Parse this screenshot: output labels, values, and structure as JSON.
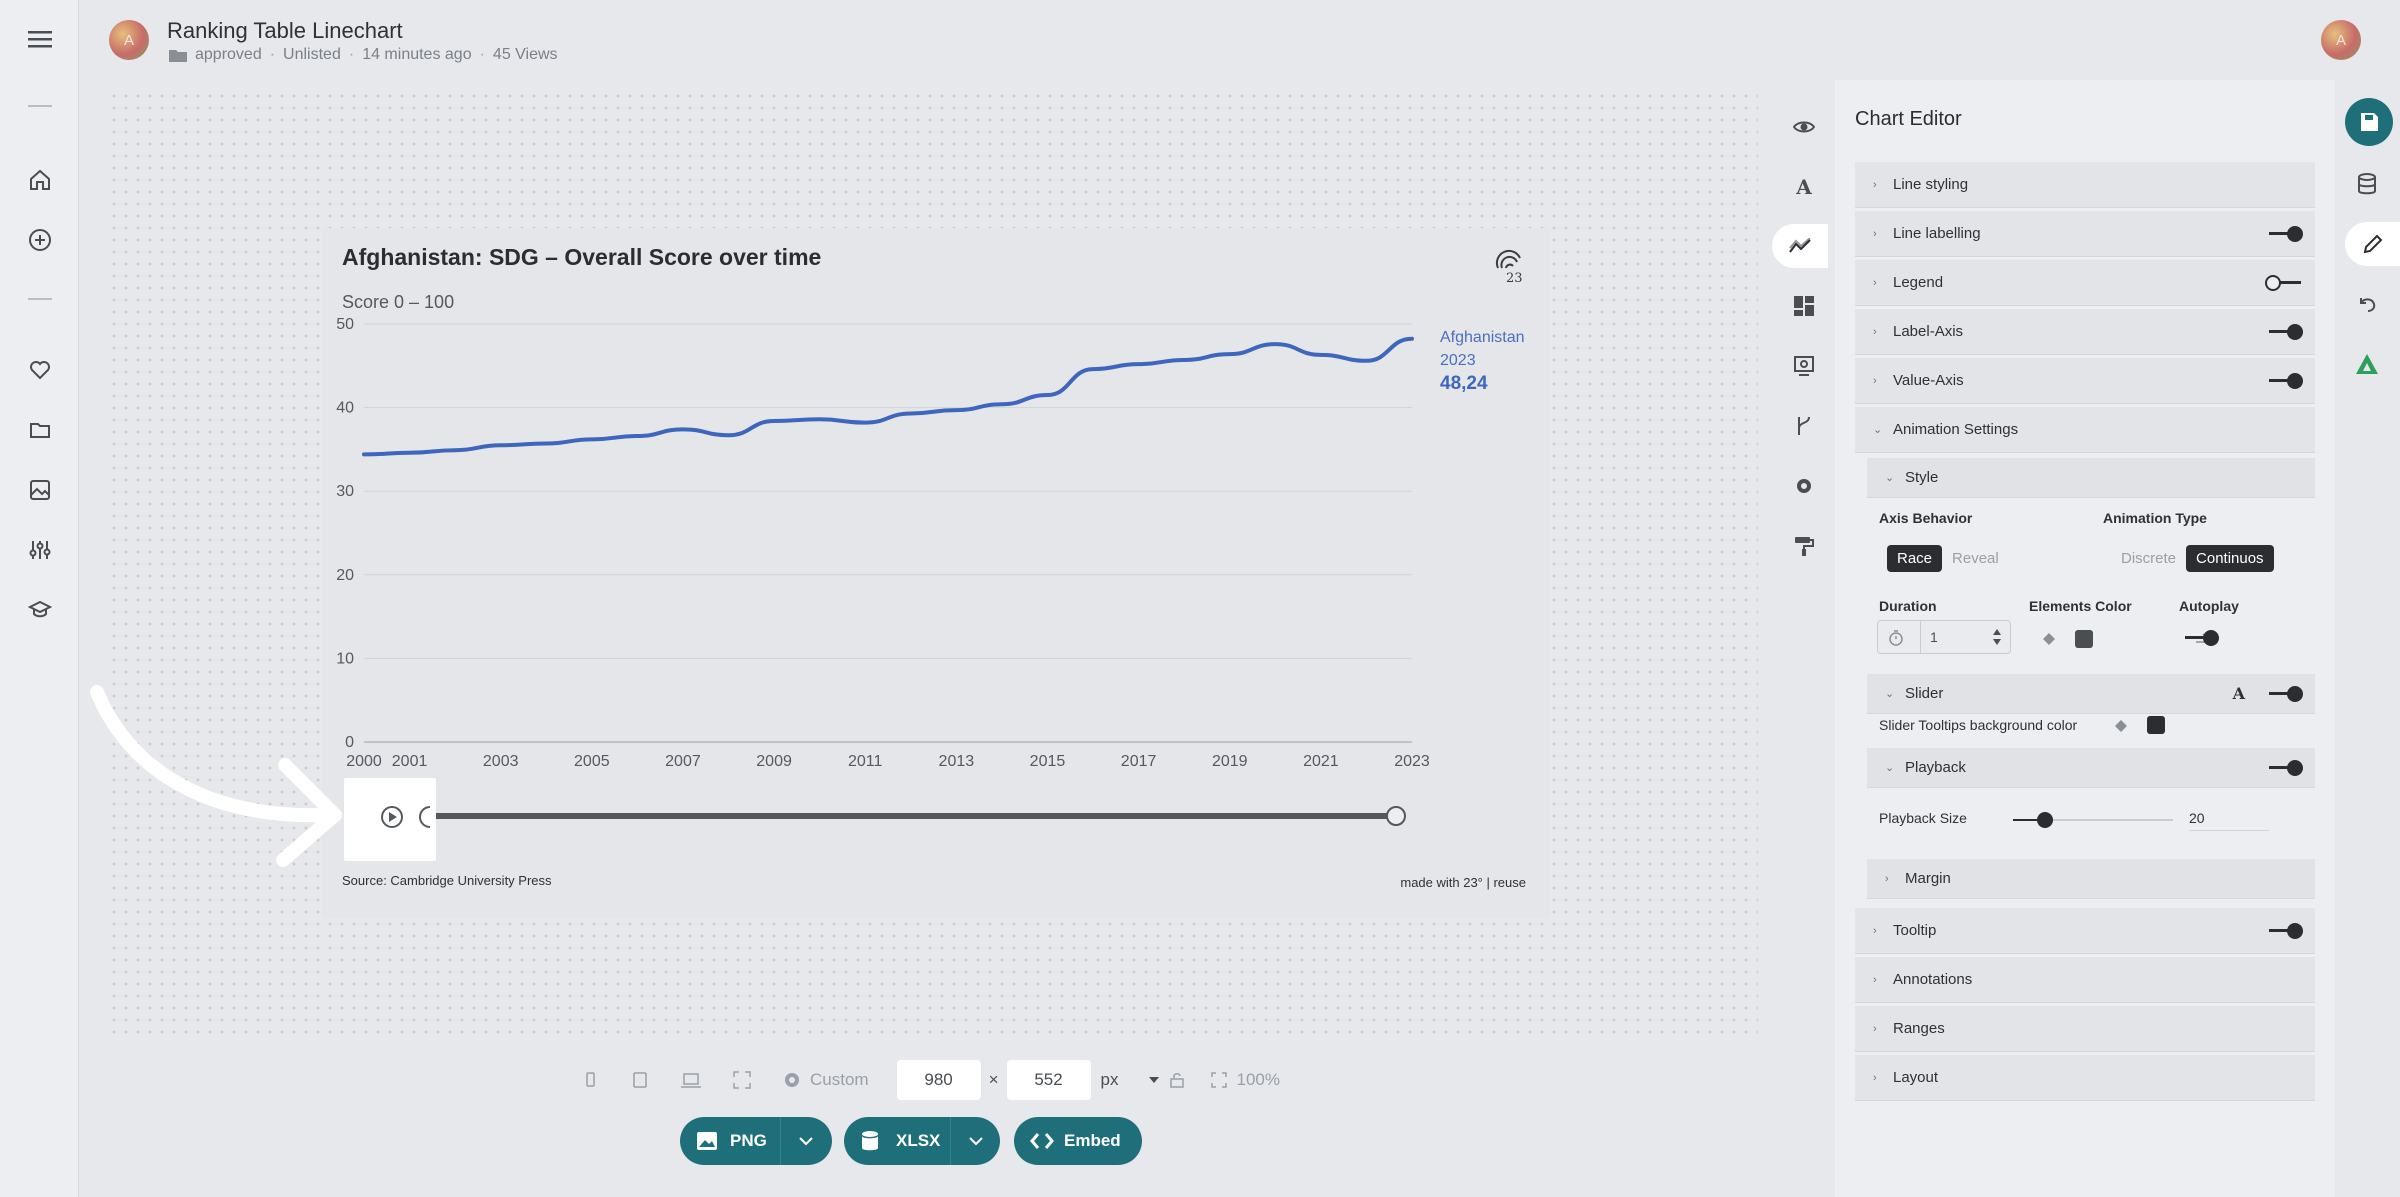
{
  "header": {
    "avatar_initial": "A",
    "title": "Ranking Table Linechart",
    "folder": "approved",
    "visibility": "Unlisted",
    "updated": "14 minutes ago",
    "views": "45 Views",
    "user_avatar_initial": "A"
  },
  "chart": {
    "title": "Afghanistan: SDG – Overall Score over time",
    "subtitle": "Score 0 – 100",
    "end_label": {
      "series": "Afghanistan",
      "year": "2023",
      "value": "48,24"
    },
    "source": "Source: Cambridge University Press",
    "made_with": "made with 23° | reuse",
    "logo_text": "23°"
  },
  "chart_data": {
    "type": "line",
    "title": "Afghanistan: SDG – Overall Score over time",
    "subtitle": "Score 0 – 100",
    "ylim": [
      0,
      50
    ],
    "yticks": [
      0,
      10,
      20,
      30,
      40,
      50
    ],
    "xticks": [
      "2000",
      "2001",
      "2003",
      "2005",
      "2007",
      "2009",
      "2011",
      "2013",
      "2015",
      "2017",
      "2019",
      "2021",
      "2023"
    ],
    "series": [
      {
        "name": "Afghanistan",
        "color": "#3e66bd",
        "x": [
          2000,
          2001,
          2002,
          2003,
          2004,
          2005,
          2006,
          2007,
          2008,
          2009,
          2010,
          2011,
          2012,
          2013,
          2014,
          2015,
          2016,
          2017,
          2018,
          2019,
          2020,
          2021,
          2022,
          2023
        ],
        "values": [
          34.4,
          34.6,
          34.9,
          35.5,
          35.7,
          36.2,
          36.6,
          37.4,
          36.7,
          38.4,
          38.6,
          38.2,
          39.3,
          39.7,
          40.4,
          41.5,
          44.6,
          45.2,
          45.7,
          46.4,
          47.6,
          46.3,
          45.6,
          48.24
        ]
      }
    ]
  },
  "canvas_toolbar": {
    "preset": "Custom",
    "width": "980",
    "times": "×",
    "height": "552",
    "unit": "px",
    "zoom": "100%"
  },
  "export": {
    "png": "PNG",
    "xlsx": "XLSX",
    "embed": "Embed"
  },
  "editor": {
    "title": "Chart Editor",
    "sections": {
      "line_styling": "Line styling",
      "line_labelling": "Line labelling",
      "legend": "Legend",
      "label_axis": "Label-Axis",
      "value_axis": "Value-Axis",
      "animation_settings": "Animation Settings",
      "style": "Style",
      "slider": "Slider",
      "playback": "Playback",
      "margin": "Margin",
      "tooltip": "Tooltip",
      "annotations": "Annotations",
      "ranges": "Ranges",
      "layout": "Layout"
    },
    "axis_behavior": {
      "label": "Axis Behavior",
      "options": [
        "Race",
        "Reveal"
      ],
      "selected": "Race"
    },
    "animation_type": {
      "label": "Animation Type",
      "options": [
        "Discrete",
        "Continuos"
      ],
      "selected": "Continuos"
    },
    "duration": {
      "label": "Duration",
      "value": "1"
    },
    "elements_color": {
      "label": "Elements Color",
      "color": "#4a4d52"
    },
    "autoplay": {
      "label": "Autoplay",
      "on": true
    },
    "slider_tooltip_bg": {
      "label": "Slider Tooltips background color",
      "color": "#2b2d31"
    },
    "playback_size": {
      "label": "Playback Size",
      "value": "20",
      "fraction": 0.2
    }
  },
  "colors": {
    "accent": "#1f6f7a",
    "line": "#3e66bd",
    "brand_green": "#2e9e5b"
  }
}
